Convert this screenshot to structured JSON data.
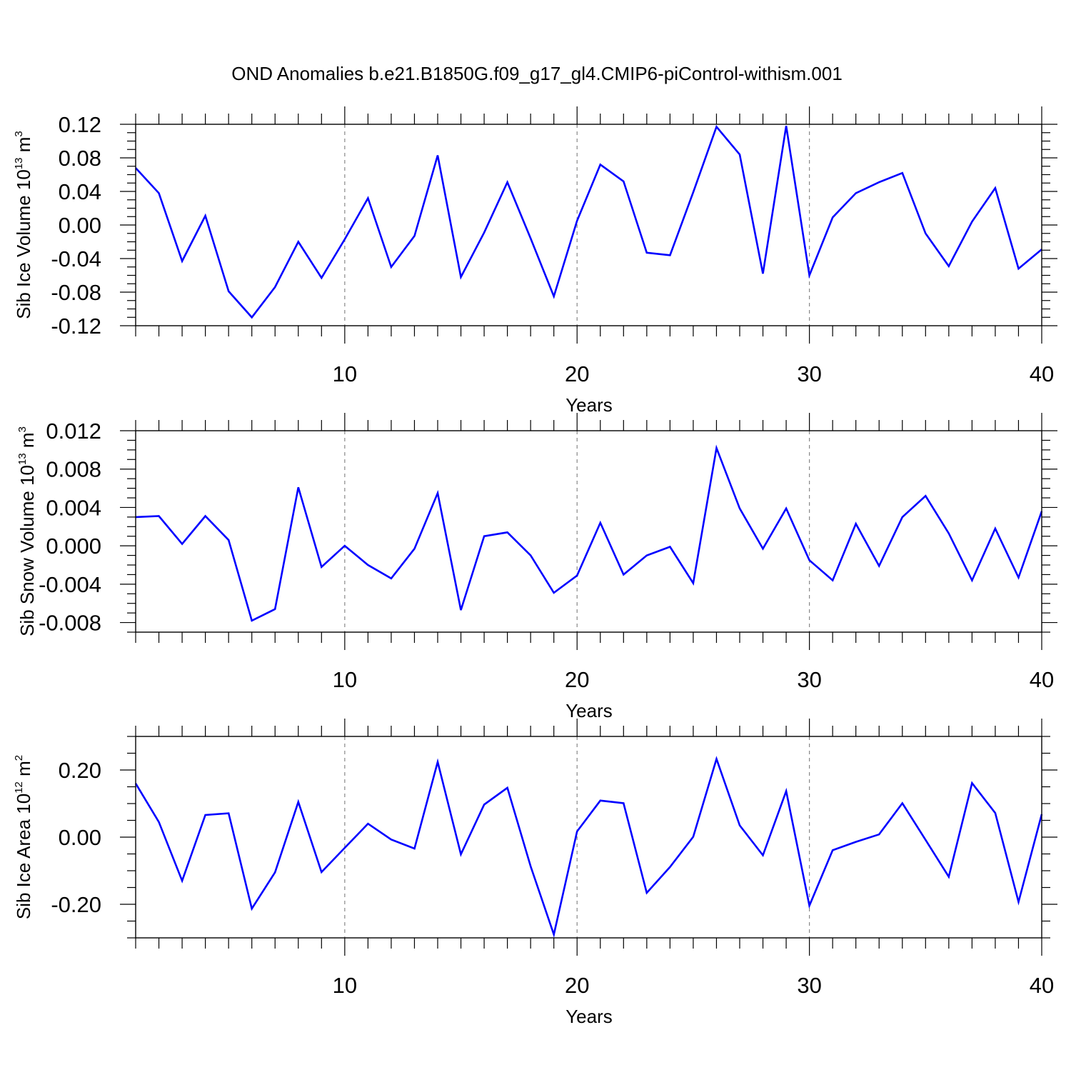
{
  "title": "OND Anomalies b.e21.B1850G.f09_g17_gl4.CMIP6-piControl-withism.001",
  "colors": {
    "line": "#0000ff",
    "axis": "#000000",
    "grid": "#888888"
  },
  "chart_data": [
    {
      "type": "line",
      "ylabel": {
        "main": "Sib Ice Volume 10",
        "sup": "13",
        "unit": " m",
        "unit_sup": "3"
      },
      "xlabel": "Years",
      "xlim": [
        1,
        40
      ],
      "ylim": [
        -0.12,
        0.12
      ],
      "xticks": [
        10,
        20,
        30,
        40
      ],
      "yticks": [
        -0.12,
        -0.08,
        -0.04,
        0.0,
        0.04,
        0.08,
        0.12
      ],
      "ytick_labels": [
        "-0.12",
        "-0.08",
        "-0.04",
        "0.00",
        "0.04",
        "0.08",
        "0.12"
      ],
      "grid": "vertical dashed at major x ticks",
      "x": [
        1,
        2,
        3,
        4,
        5,
        6,
        7,
        8,
        9,
        10,
        11,
        12,
        13,
        14,
        15,
        16,
        17,
        18,
        19,
        20,
        21,
        22,
        23,
        24,
        25,
        26,
        27,
        28,
        29,
        30,
        31,
        32,
        33,
        34,
        35,
        36,
        37,
        38,
        39,
        40
      ],
      "values": [
        0.068,
        0.038,
        -0.043,
        0.011,
        -0.079,
        -0.11,
        -0.074,
        -0.02,
        -0.063,
        -0.017,
        0.032,
        -0.05,
        -0.013,
        0.083,
        -0.062,
        -0.009,
        0.051,
        -0.016,
        -0.085,
        0.005,
        0.072,
        0.052,
        -0.033,
        -0.036,
        0.039,
        0.117,
        0.084,
        -0.058,
        0.118,
        -0.06,
        0.009,
        0.038,
        0.051,
        0.062,
        -0.01,
        -0.049,
        0.004,
        0.044,
        -0.052,
        -0.029
      ]
    },
    {
      "type": "line",
      "ylabel": {
        "main": "Sib Snow Volume 10",
        "sup": "13",
        "unit": " m",
        "unit_sup": "3"
      },
      "xlabel": "Years",
      "xlim": [
        1,
        40
      ],
      "ylim": [
        -0.009,
        0.012
      ],
      "xticks": [
        10,
        20,
        30,
        40
      ],
      "yticks": [
        -0.008,
        -0.004,
        0.0,
        0.004,
        0.008,
        0.012
      ],
      "ytick_labels": [
        "-0.008",
        "-0.004",
        "0.000",
        "0.004",
        "0.008",
        "0.012"
      ],
      "grid": "vertical dashed at major x ticks",
      "x": [
        1,
        2,
        3,
        4,
        5,
        6,
        7,
        8,
        9,
        10,
        11,
        12,
        13,
        14,
        15,
        16,
        17,
        18,
        19,
        20,
        21,
        22,
        23,
        24,
        25,
        26,
        27,
        28,
        29,
        30,
        31,
        32,
        33,
        34,
        35,
        36,
        37,
        38,
        39,
        40
      ],
      "values": [
        0.003,
        0.0031,
        0.0002,
        0.0031,
        0.0006,
        -0.0078,
        -0.0066,
        0.0061,
        -0.0022,
        0.0,
        -0.002,
        -0.0034,
        -0.0003,
        0.0055,
        -0.0067,
        0.001,
        0.0014,
        -0.001,
        -0.0049,
        -0.0031,
        0.0024,
        -0.003,
        -0.001,
        -0.0001,
        -0.0039,
        0.0102,
        0.0039,
        -0.0003,
        0.0039,
        -0.0015,
        -0.0036,
        0.0023,
        -0.0021,
        0.003,
        0.0052,
        0.0013,
        -0.0036,
        0.0018,
        -0.0033,
        0.0036
      ]
    },
    {
      "type": "line",
      "ylabel": {
        "main": "Sib Ice Area 10",
        "sup": "12",
        "unit": " m",
        "unit_sup": "2"
      },
      "xlabel": "Years",
      "xlim": [
        1,
        40
      ],
      "ylim": [
        -0.3,
        0.3
      ],
      "xticks": [
        10,
        20,
        30,
        40
      ],
      "yticks": [
        -0.2,
        0.0,
        0.2
      ],
      "ytick_labels": [
        "-0.20",
        "0.00",
        "0.20"
      ],
      "grid": "vertical dashed at major x ticks",
      "x": [
        1,
        2,
        3,
        4,
        5,
        6,
        7,
        8,
        9,
        10,
        11,
        12,
        13,
        14,
        15,
        16,
        17,
        18,
        19,
        20,
        21,
        22,
        23,
        24,
        25,
        26,
        27,
        28,
        29,
        30,
        31,
        32,
        33,
        34,
        35,
        36,
        37,
        38,
        39,
        40
      ],
      "values": [
        0.16,
        0.045,
        -0.13,
        0.066,
        0.071,
        -0.213,
        -0.105,
        0.105,
        -0.104,
        -0.032,
        0.04,
        -0.007,
        -0.034,
        0.224,
        -0.051,
        0.097,
        0.147,
        -0.087,
        -0.29,
        0.017,
        0.109,
        0.101,
        -0.166,
        -0.089,
        0.001,
        0.233,
        0.035,
        -0.054,
        0.137,
        -0.204,
        -0.039,
        -0.014,
        0.008,
        0.101,
        -0.008,
        -0.118,
        0.161,
        0.072,
        -0.193,
        0.068
      ]
    }
  ]
}
